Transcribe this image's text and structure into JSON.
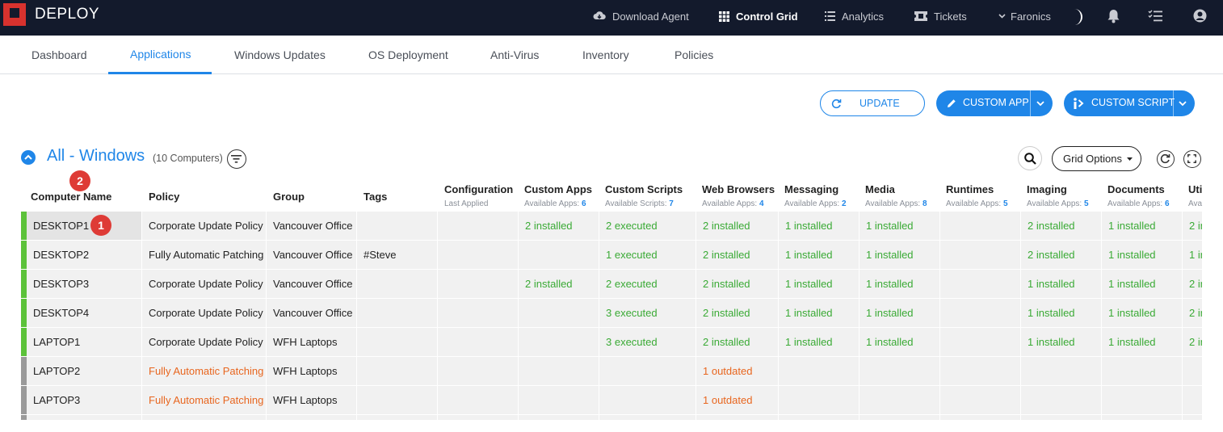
{
  "app": {
    "logo_text": "DEPLOY"
  },
  "topnav": {
    "download_agent": "Download Agent",
    "control_grid": "Control Grid",
    "analytics": "Analytics",
    "tickets": "Tickets",
    "faronics": "Faronics"
  },
  "tabs": [
    "Dashboard",
    "Applications",
    "Windows Updates",
    "OS Deployment",
    "Anti-Virus",
    "Inventory",
    "Policies"
  ],
  "active_tab": "Applications",
  "toolbar": {
    "update_label": "UPDATE",
    "custom_app_label": "CUSTOM APP",
    "custom_script_label": "CUSTOM SCRIPT"
  },
  "section": {
    "title": "All - Windows",
    "count": "(10 Computers)",
    "grid_options_label": "Grid Options"
  },
  "badges": {
    "row_badge": "1",
    "header_badge": "2"
  },
  "columns": [
    {
      "label": "Computer Name",
      "sub_text": "",
      "sub_count": ""
    },
    {
      "label": "Policy",
      "sub_text": "",
      "sub_count": ""
    },
    {
      "label": "Group",
      "sub_text": "",
      "sub_count": ""
    },
    {
      "label": "Tags",
      "sub_text": "",
      "sub_count": ""
    },
    {
      "label": "Configuration",
      "sub_text": "Last Applied",
      "sub_count": ""
    },
    {
      "label": "Custom Apps",
      "sub_text": "Available Apps: ",
      "sub_count": "6"
    },
    {
      "label": "Custom Scripts",
      "sub_text": "Available Scripts: ",
      "sub_count": "7"
    },
    {
      "label": "Web Browsers",
      "sub_text": "Available Apps: ",
      "sub_count": "4"
    },
    {
      "label": "Messaging",
      "sub_text": "Available Apps: ",
      "sub_count": "2"
    },
    {
      "label": "Media",
      "sub_text": "Available Apps: ",
      "sub_count": "8"
    },
    {
      "label": "Runtimes",
      "sub_text": "Available Apps: ",
      "sub_count": "5"
    },
    {
      "label": "Imaging",
      "sub_text": "Available Apps: ",
      "sub_count": "5"
    },
    {
      "label": "Documents",
      "sub_text": "Available Apps: ",
      "sub_count": "6"
    },
    {
      "label": "Uti",
      "sub_text": "Ava",
      "sub_count": ""
    }
  ],
  "rows": [
    {
      "status": "ok",
      "cells": [
        "DESKTOP1",
        "Corporate Update Policy",
        "Vancouver Office",
        "",
        "",
        "2 installed",
        "2 executed",
        "2 installed",
        "1 installed",
        "1 installed",
        "",
        "2 installed",
        "1 installed",
        "2 in"
      ]
    },
    {
      "status": "ok",
      "cells": [
        "DESKTOP2",
        "Fully Automatic Patching",
        "Vancouver Office",
        "#Steve",
        "",
        "",
        "1 executed",
        "2 installed",
        "1 installed",
        "1 installed",
        "",
        "2 installed",
        "1 installed",
        "1 in"
      ]
    },
    {
      "status": "ok",
      "cells": [
        "DESKTOP3",
        "Corporate Update Policy",
        "Vancouver Office",
        "",
        "",
        "2 installed",
        "2 executed",
        "2 installed",
        "1 installed",
        "1 installed",
        "",
        "1 installed",
        "1 installed",
        "2 in"
      ]
    },
    {
      "status": "ok",
      "cells": [
        "DESKTOP4",
        "Corporate Update Policy",
        "Vancouver Office",
        "",
        "",
        "",
        "3 executed",
        "2 installed",
        "1 installed",
        "1 installed",
        "",
        "1 installed",
        "1 installed",
        "2 in"
      ]
    },
    {
      "status": "ok",
      "cells": [
        "LAPTOP1",
        "Corporate Update Policy",
        "WFH Laptops",
        "",
        "",
        "",
        "3 executed",
        "2 installed",
        "1 installed",
        "1 installed",
        "",
        "1 installed",
        "1 installed",
        "2 in"
      ]
    },
    {
      "status": "off",
      "policy_warn": true,
      "cells": [
        "LAPTOP2",
        "Fully Automatic Patching",
        "WFH Laptops",
        "",
        "",
        "",
        "",
        "1 outdated",
        "",
        "",
        "",
        "",
        "",
        ""
      ]
    },
    {
      "status": "off",
      "policy_warn": true,
      "cells": [
        "LAPTOP3",
        "Fully Automatic Patching",
        "WFH Laptops",
        "",
        "",
        "",
        "",
        "1 outdated",
        "",
        "",
        "",
        "",
        "",
        ""
      ]
    },
    {
      "status": "off",
      "cells": [
        "",
        "",
        "",
        "",
        "",
        "",
        "",
        "",
        "",
        "",
        "",
        "",
        "",
        ""
      ]
    }
  ],
  "colors": {
    "topbar": "#131a2c",
    "accent": "#1f86e8",
    "ok": "#3aaa35",
    "warn": "#e8661f",
    "status_on": "#5cc23a",
    "status_off": "#9a9a9a",
    "badge": "#de3b36"
  },
  "icons": [
    "cloud-download-icon",
    "grid-icon",
    "list-icon",
    "ticket-icon",
    "chevron-down-icon",
    "moon-icon",
    "bell-icon",
    "checklist-icon",
    "user-icon",
    "refresh-icon",
    "pencil-icon",
    "script-icon",
    "filter-icon",
    "search-icon",
    "reload-icon",
    "expand-icon",
    "chevron-up-icon"
  ]
}
